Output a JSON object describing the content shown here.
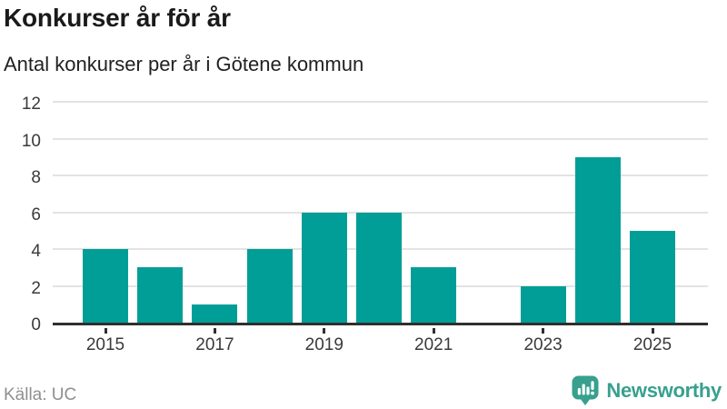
{
  "header": {
    "title": "Konkurser år för år",
    "subtitle": "Antal konkurser per år i Götene kommun"
  },
  "chart_data": {
    "type": "bar",
    "categories": [
      "2015",
      "2016",
      "2017",
      "2018",
      "2019",
      "2020",
      "2021",
      "2022",
      "2023",
      "2024",
      "2025"
    ],
    "values": [
      4,
      3,
      1,
      4,
      6,
      6,
      3,
      0,
      2,
      9,
      5
    ],
    "title": "Konkurser år för år",
    "subtitle": "Antal konkurser per år i Götene kommun",
    "xlabel": "",
    "ylabel": "",
    "ylim": [
      0,
      12
    ],
    "yticks": [
      0,
      2,
      4,
      6,
      8,
      10,
      12
    ],
    "xtick_labels": [
      "2015",
      "2017",
      "2019",
      "2021",
      "2023",
      "2025"
    ],
    "grid": true,
    "legend": false,
    "bar_color": "#009e97"
  },
  "footer": {
    "source": "Källa: UC",
    "brand": "Newsworthy"
  },
  "colors": {
    "bar": "#009e97",
    "grid": "#e3e3e3",
    "axis": "#2f2f2f",
    "title": "#1a1a1a",
    "tick": "#3a3a3a",
    "muted": "#8f8f8f",
    "brand": "#38a08e"
  },
  "icons": {
    "brand_logo": "newsworthy-speech-bubble-bar-chart-icon"
  }
}
